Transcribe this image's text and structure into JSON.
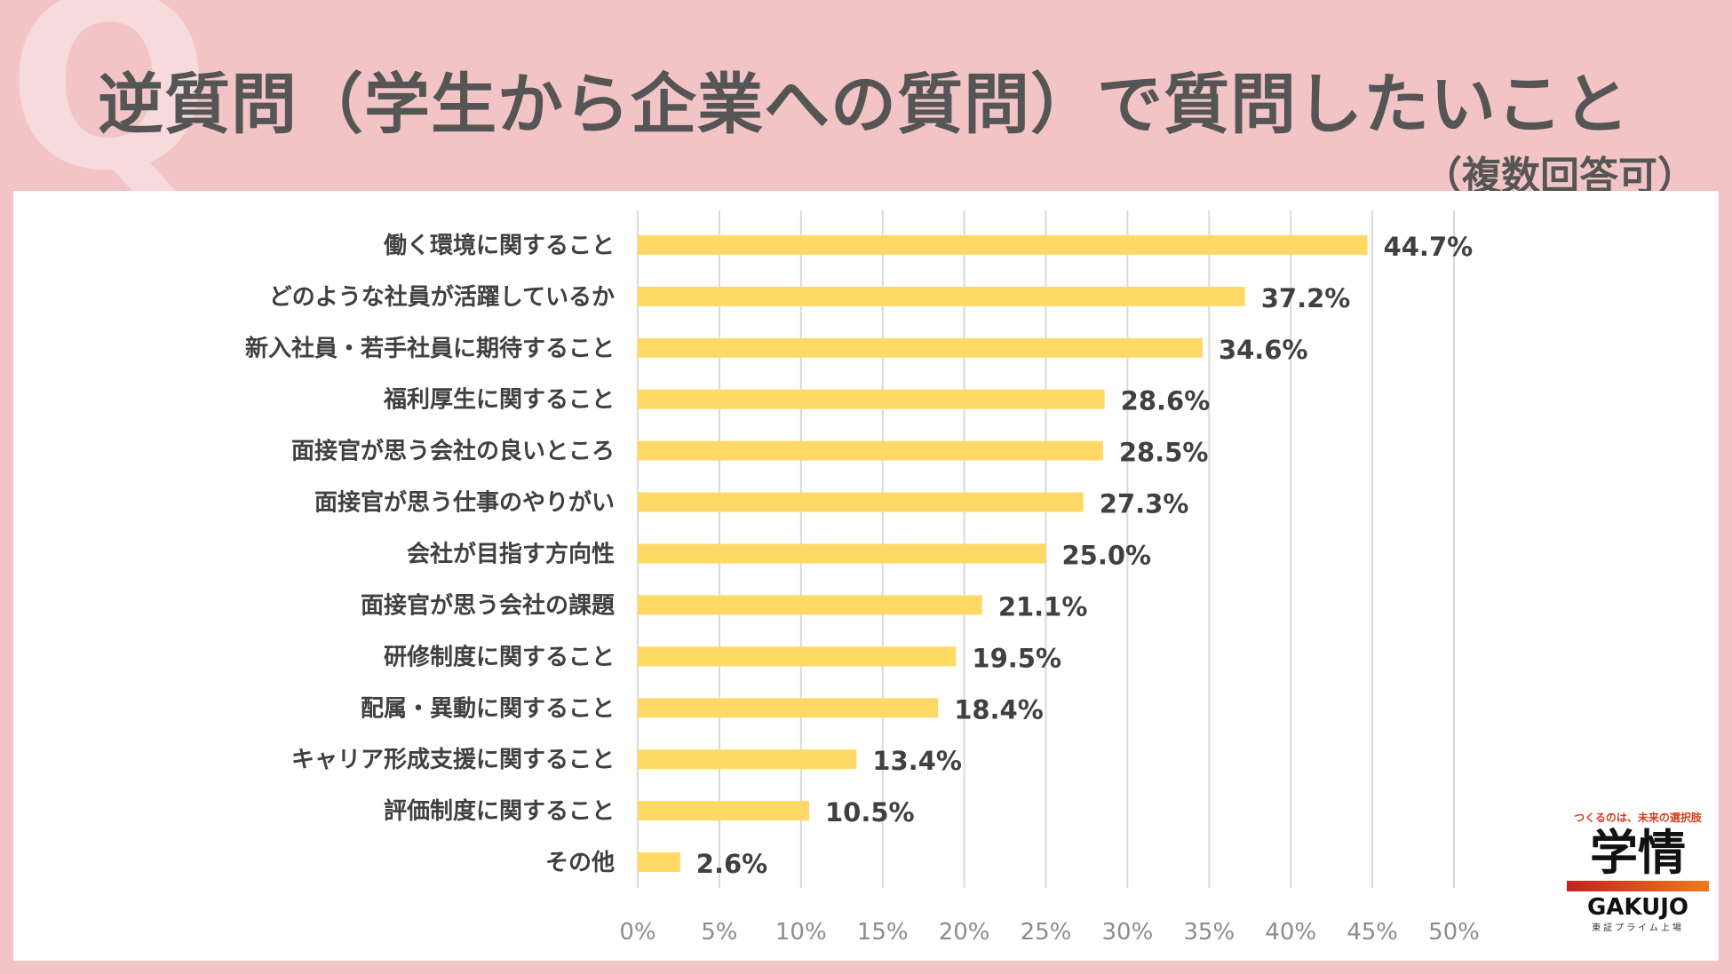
{
  "header": {
    "q_mark": "Q",
    "title": "逆質問（学生から企業への質問）で質問したいこと",
    "subtitle": "（複数回答可）"
  },
  "colors": {
    "background": "#f2c4c6",
    "bar": "#ffd966",
    "text": "#404040",
    "axis_text": "#8c8c8c",
    "grid": "#d9d9d9"
  },
  "chart_data": {
    "type": "bar",
    "orientation": "horizontal",
    "categories": [
      "働く環境に関すること",
      "どのような社員が活躍しているか",
      "新入社員・若手社員に期待すること",
      "福利厚生に関すること",
      "面接官が思う会社の良いところ",
      "面接官が思う仕事のやりがい",
      "会社が目指す方向性",
      "面接官が思う会社の課題",
      "研修制度に関すること",
      "配属・異動に関すること",
      "キャリア形成支援に関すること",
      "評価制度に関すること",
      "その他"
    ],
    "values": [
      44.7,
      37.2,
      34.6,
      28.6,
      28.5,
      27.3,
      25.0,
      21.1,
      19.5,
      18.4,
      13.4,
      10.5,
      2.6
    ],
    "value_labels": [
      "44.7%",
      "37.2%",
      "34.6%",
      "28.6%",
      "28.5%",
      "27.3%",
      "25.0%",
      "21.1%",
      "19.5%",
      "18.4%",
      "13.4%",
      "10.5%",
      "2.6%"
    ],
    "xlim": [
      0,
      50
    ],
    "xticks": [
      0,
      5,
      10,
      15,
      20,
      25,
      30,
      35,
      40,
      45,
      50
    ],
    "xtick_labels": [
      "0%",
      "5%",
      "10%",
      "15%",
      "20%",
      "25%",
      "30%",
      "35%",
      "40%",
      "45%",
      "50%"
    ],
    "grid": true,
    "legend": "none"
  },
  "logo": {
    "tagline": "つくるのは、未来の選択肢",
    "main": "学情",
    "en": "GAKUJO",
    "sub": "東証プライム上場"
  }
}
